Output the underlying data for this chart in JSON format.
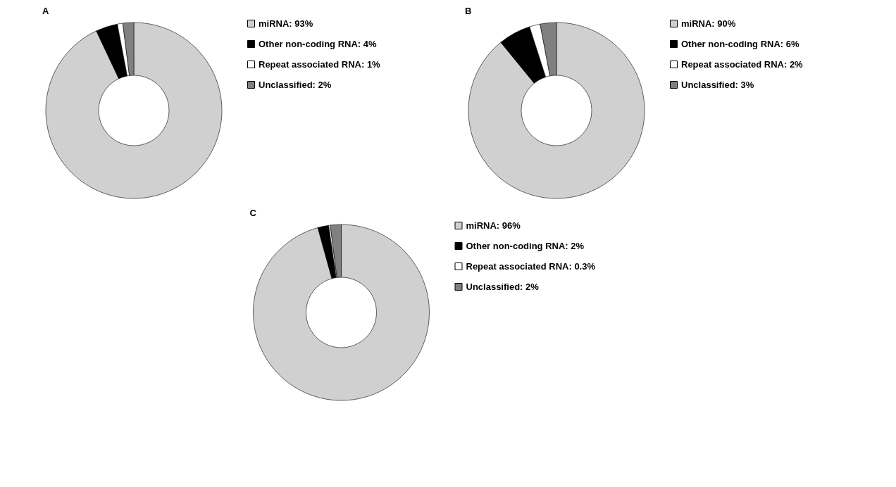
{
  "chart_data": [
    {
      "type": "donut",
      "title": "A",
      "categories": [
        "miRNA: 93%",
        "Other non-coding RNA: 4%",
        "Repeat associated RNA: 1%",
        "Unclassified: 2%"
      ],
      "values": [
        93,
        4,
        1,
        2
      ],
      "colors": [
        "#d0d0d0",
        "#000000",
        "#ffffff",
        "#808080"
      ],
      "legend": "right"
    },
    {
      "type": "donut",
      "title": "B",
      "categories": [
        "miRNA: 90%",
        "Other non-coding RNA: 6%",
        "Repeat associated RNA: 2%",
        "Unclassified: 3%"
      ],
      "values": [
        90,
        6,
        2,
        3
      ],
      "colors": [
        "#d0d0d0",
        "#000000",
        "#ffffff",
        "#808080"
      ],
      "legend": "right"
    },
    {
      "type": "donut",
      "title": "C",
      "categories": [
        "miRNA: 96%",
        "Other non-coding RNA: 2%",
        "Repeat associated RNA: 0.3%",
        "Unclassified: 2%"
      ],
      "values": [
        96,
        2,
        0.3,
        2
      ],
      "colors": [
        "#d0d0d0",
        "#000000",
        "#ffffff",
        "#808080"
      ],
      "legend": "right"
    }
  ]
}
